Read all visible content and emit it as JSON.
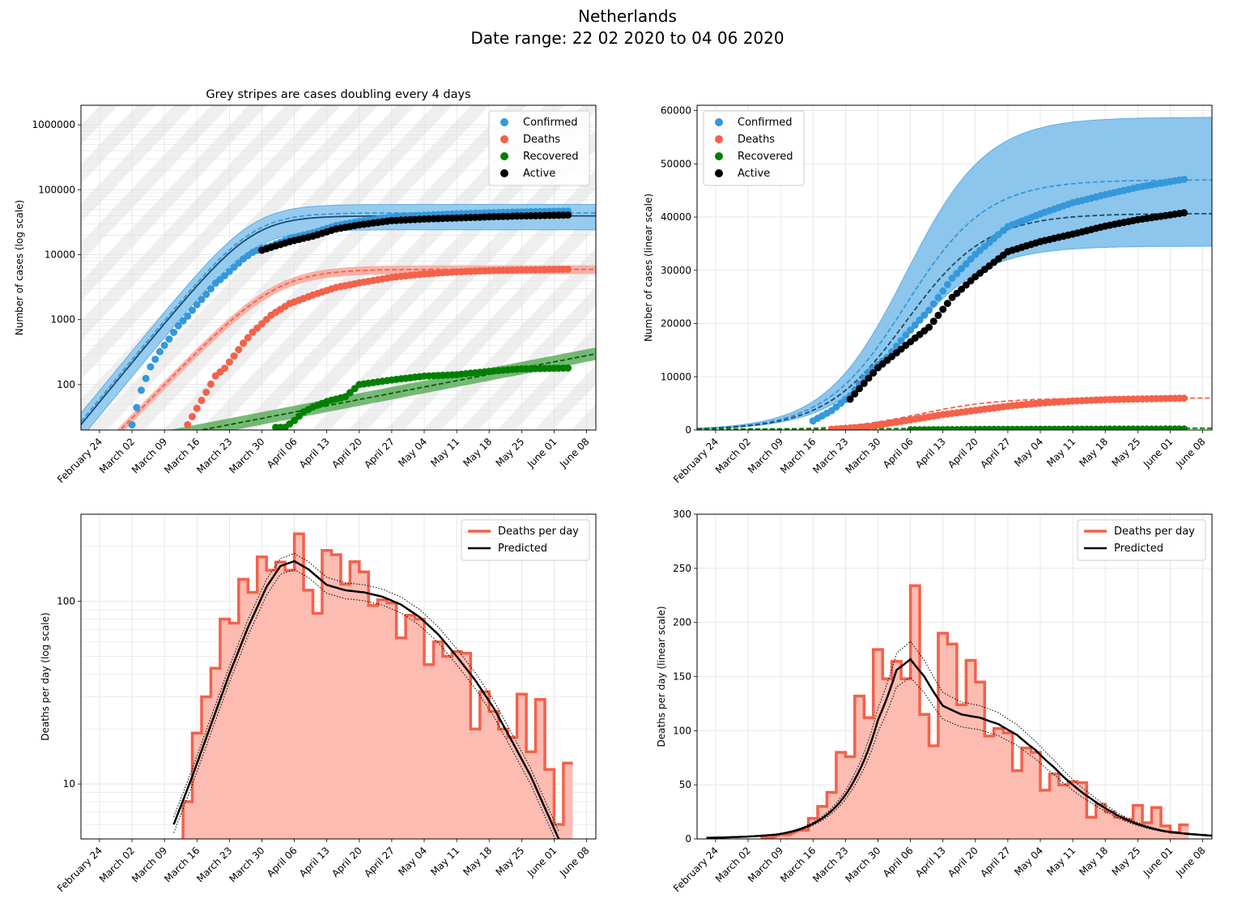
{
  "figure": {
    "title_line1": "Netherlands",
    "title_line2": "Date range: 22 02 2020 to 04 06 2020"
  },
  "date_ticks": [
    "February 24",
    "March 02",
    "March 09",
    "March 16",
    "March 23",
    "March 30",
    "April 06",
    "April 13",
    "April 20",
    "April 27",
    "May 04",
    "May 11",
    "May 18",
    "May 25",
    "June 01",
    "June 08"
  ],
  "colors": {
    "confirmed": "#3498db",
    "deaths": "#f4614a",
    "recovered": "#008000",
    "active": "#000000",
    "active_line": "#1a4a6e",
    "confirmed_band": "#8cc6ec",
    "deaths_fill": "#fcbcb1",
    "stripe": "#efefef",
    "grid": "#e2e2e2"
  },
  "chart_data": [
    {
      "type": "scatter",
      "title": "Grey stripes are cases doubling every 4 days",
      "xlabel": "",
      "ylabel": "Number of cases (log scale)",
      "yscale": "log",
      "ylim": [
        20,
        2000000
      ],
      "xlim": [
        "2020-02-20",
        "2020-06-10"
      ],
      "grid": true,
      "legend": "top-right",
      "yticks": [
        "100",
        "1000",
        "10000",
        "100000",
        "1000000"
      ],
      "legend_entries": [
        "Confirmed",
        "Deaths",
        "Recovered",
        "Active"
      ],
      "series": [
        {
          "name": "Confirmed",
          "x": [
            "2020-03-02",
            "2020-03-04",
            "2020-03-06",
            "2020-03-08",
            "2020-03-10",
            "2020-03-12",
            "2020-03-14",
            "2020-03-16",
            "2020-03-18",
            "2020-03-20",
            "2020-03-22",
            "2020-03-24",
            "2020-03-26",
            "2020-03-28",
            "2020-03-30",
            "2020-04-01",
            "2020-04-05",
            "2020-04-10",
            "2020-04-15",
            "2020-04-20",
            "2020-04-27",
            "2020-05-04",
            "2020-05-11",
            "2020-05-18",
            "2020-05-25",
            "2020-06-04"
          ],
          "y": [
            24,
            82,
            188,
            321,
            503,
            804,
            1135,
            1705,
            2460,
            3631,
            4749,
            6412,
            8603,
            10866,
            12595,
            13614,
            17851,
            21762,
            28153,
            32655,
            38245,
            40571,
            42627,
            44141,
            45578,
            46942
          ]
        },
        {
          "name": "Deaths",
          "x": [
            "2020-03-14",
            "2020-03-16",
            "2020-03-18",
            "2020-03-20",
            "2020-03-22",
            "2020-03-24",
            "2020-03-26",
            "2020-03-28",
            "2020-03-30",
            "2020-04-01",
            "2020-04-05",
            "2020-04-10",
            "2020-04-15",
            "2020-04-20",
            "2020-04-27",
            "2020-05-04",
            "2020-05-11",
            "2020-05-18",
            "2020-05-25",
            "2020-06-04"
          ],
          "y": [
            24,
            43,
            76,
            136,
            179,
            276,
            434,
            639,
            864,
            1173,
            1766,
            2396,
            3134,
            3684,
            4475,
            5056,
            5440,
            5694,
            5830,
            5977
          ]
        },
        {
          "name": "Recovered",
          "x": [
            "2020-04-02",
            "2020-04-04",
            "2020-04-06",
            "2020-04-08",
            "2020-04-10",
            "2020-04-13",
            "2020-04-17",
            "2020-04-20",
            "2020-04-27",
            "2020-05-04",
            "2020-05-11",
            "2020-05-18",
            "2020-05-25",
            "2020-06-04"
          ],
          "y": [
            22,
            22,
            28,
            38,
            45,
            55,
            65,
            100,
            118,
            135,
            142,
            160,
            175,
            180
          ]
        },
        {
          "name": "Active",
          "x": [
            "2020-03-30",
            "2020-04-05",
            "2020-04-10",
            "2020-04-15",
            "2020-04-20",
            "2020-04-27",
            "2020-05-04",
            "2020-05-11",
            "2020-05-18",
            "2020-05-25",
            "2020-06-04"
          ],
          "y": [
            11700,
            15900,
            19300,
            24900,
            28800,
            33500,
            35400,
            36800,
            38300,
            39500,
            40800
          ]
        }
      ]
    },
    {
      "type": "scatter",
      "xlabel": "",
      "ylabel": "Number of cases (linear scale)",
      "yscale": "linear",
      "ylim": [
        0,
        61000
      ],
      "xlim": [
        "2020-02-20",
        "2020-06-10"
      ],
      "grid": true,
      "legend": "top-left",
      "yticks": [
        "0",
        "10000",
        "20000",
        "30000",
        "40000",
        "50000",
        "60000"
      ],
      "legend_entries": [
        "Confirmed",
        "Deaths",
        "Recovered",
        "Active"
      ],
      "series": [
        {
          "name": "Confirmed",
          "x": [
            "2020-03-16",
            "2020-03-20",
            "2020-03-24",
            "2020-03-28",
            "2020-04-01",
            "2020-04-05",
            "2020-04-10",
            "2020-04-15",
            "2020-04-20",
            "2020-04-27",
            "2020-05-04",
            "2020-05-11",
            "2020-05-18",
            "2020-05-25",
            "2020-06-04"
          ],
          "y": [
            1705,
            3631,
            6412,
            10866,
            13614,
            17851,
            22500,
            28500,
            33000,
            38200,
            40600,
            42700,
            44200,
            45600,
            47100
          ]
        },
        {
          "name": "Deaths",
          "x": [
            "2020-03-20",
            "2020-03-28",
            "2020-04-05",
            "2020-04-13",
            "2020-04-20",
            "2020-04-27",
            "2020-05-04",
            "2020-05-11",
            "2020-05-18",
            "2020-05-25",
            "2020-06-04"
          ],
          "y": [
            136,
            639,
            1766,
            2900,
            3684,
            4475,
            5056,
            5440,
            5694,
            5830,
            5977
          ]
        },
        {
          "name": "Recovered",
          "x": [
            "2020-04-06",
            "2020-04-20",
            "2020-05-04",
            "2020-05-18",
            "2020-06-04"
          ],
          "y": [
            28,
            100,
            135,
            160,
            180
          ]
        },
        {
          "name": "Active",
          "x": [
            "2020-03-24",
            "2020-03-30",
            "2020-04-05",
            "2020-04-10",
            "2020-04-15",
            "2020-04-20",
            "2020-04-27",
            "2020-05-04",
            "2020-05-11",
            "2020-05-18",
            "2020-05-25",
            "2020-06-04"
          ],
          "y": [
            5800,
            11700,
            15900,
            19300,
            24900,
            28800,
            33500,
            35400,
            36800,
            38300,
            39500,
            40800
          ]
        }
      ]
    },
    {
      "type": "line",
      "xlabel": "",
      "ylabel": "Deaths per day (log scale)",
      "yscale": "log",
      "ylim": [
        5,
        300
      ],
      "xlim": [
        "2020-02-20",
        "2020-06-10"
      ],
      "grid": true,
      "legend": "top-right",
      "yticks": [
        "10",
        "100"
      ],
      "legend_entries": [
        "Deaths per day",
        "Predicted"
      ],
      "series": [
        {
          "name": "Deaths per day",
          "x": [
            "2020-03-14",
            "2020-03-16",
            "2020-03-18",
            "2020-03-20",
            "2020-03-22",
            "2020-03-24",
            "2020-03-26",
            "2020-03-28",
            "2020-03-30",
            "2020-04-01",
            "2020-04-03",
            "2020-04-05",
            "2020-04-07",
            "2020-04-09",
            "2020-04-11",
            "2020-04-13",
            "2020-04-15",
            "2020-04-17",
            "2020-04-19",
            "2020-04-21",
            "2020-04-23",
            "2020-04-25",
            "2020-04-27",
            "2020-04-29",
            "2020-05-01",
            "2020-05-03",
            "2020-05-05",
            "2020-05-07",
            "2020-05-09",
            "2020-05-11",
            "2020-05-13",
            "2020-05-15",
            "2020-05-17",
            "2020-05-19",
            "2020-05-21",
            "2020-05-23",
            "2020-05-25",
            "2020-05-27",
            "2020-05-29",
            "2020-05-31",
            "2020-06-02",
            "2020-06-04"
          ],
          "y": [
            8,
            19,
            30,
            43,
            80,
            76,
            132,
            112,
            175,
            148,
            164,
            148,
            234,
            115,
            86,
            190,
            180,
            124,
            165,
            145,
            95,
            102,
            98,
            63,
            84,
            80,
            45,
            60,
            50,
            53,
            52,
            20,
            32,
            25,
            20,
            18,
            31,
            15,
            29,
            12,
            6,
            13
          ]
        },
        {
          "name": "Predicted",
          "x": [
            "2020-03-11",
            "2020-03-15",
            "2020-03-19",
            "2020-03-23",
            "2020-03-27",
            "2020-03-31",
            "2020-04-03",
            "2020-04-06",
            "2020-04-09",
            "2020-04-13",
            "2020-04-17",
            "2020-04-21",
            "2020-04-25",
            "2020-04-29",
            "2020-05-03",
            "2020-05-07",
            "2020-05-11",
            "2020-05-15",
            "2020-05-19",
            "2020-05-23",
            "2020-05-27",
            "2020-05-31",
            "2020-06-02"
          ],
          "y": [
            6,
            11,
            21,
            40,
            72,
            120,
            156,
            166,
            150,
            123,
            115,
            112,
            106,
            96,
            82,
            66,
            50,
            37,
            26,
            17,
            11,
            6.5,
            5
          ]
        }
      ]
    },
    {
      "type": "line",
      "xlabel": "",
      "ylabel": "Deaths per day (linear scale)",
      "yscale": "linear",
      "ylim": [
        0,
        300
      ],
      "xlim": [
        "2020-02-20",
        "2020-06-10"
      ],
      "grid": true,
      "legend": "top-right",
      "yticks": [
        "0",
        "50",
        "100",
        "150",
        "200",
        "250",
        "300"
      ],
      "legend_entries": [
        "Deaths per day",
        "Predicted"
      ],
      "series": [
        {
          "name": "Deaths per day",
          "x": [
            "2020-03-06",
            "2020-03-10",
            "2020-03-14",
            "2020-03-16",
            "2020-03-18",
            "2020-03-20",
            "2020-03-22",
            "2020-03-24",
            "2020-03-26",
            "2020-03-28",
            "2020-03-30",
            "2020-04-01",
            "2020-04-03",
            "2020-04-05",
            "2020-04-07",
            "2020-04-09",
            "2020-04-11",
            "2020-04-13",
            "2020-04-15",
            "2020-04-17",
            "2020-04-19",
            "2020-04-21",
            "2020-04-23",
            "2020-04-25",
            "2020-04-27",
            "2020-04-29",
            "2020-05-01",
            "2020-05-03",
            "2020-05-05",
            "2020-05-07",
            "2020-05-09",
            "2020-05-11",
            "2020-05-13",
            "2020-05-15",
            "2020-05-17",
            "2020-05-19",
            "2020-05-21",
            "2020-05-23",
            "2020-05-25",
            "2020-05-27",
            "2020-05-29",
            "2020-05-31",
            "2020-06-02",
            "2020-06-04"
          ],
          "y": [
            1,
            4,
            8,
            19,
            30,
            43,
            80,
            76,
            132,
            112,
            175,
            148,
            164,
            148,
            234,
            115,
            86,
            190,
            180,
            124,
            165,
            145,
            95,
            102,
            98,
            63,
            84,
            80,
            45,
            60,
            50,
            53,
            52,
            20,
            32,
            25,
            20,
            18,
            31,
            15,
            29,
            12,
            6,
            13
          ]
        },
        {
          "name": "Predicted",
          "x": [
            "2020-02-22",
            "2020-03-01",
            "2020-03-08",
            "2020-03-15",
            "2020-03-20",
            "2020-03-25",
            "2020-03-30",
            "2020-04-03",
            "2020-04-06",
            "2020-04-09",
            "2020-04-13",
            "2020-04-17",
            "2020-04-21",
            "2020-04-25",
            "2020-04-29",
            "2020-05-03",
            "2020-05-07",
            "2020-05-11",
            "2020-05-15",
            "2020-05-19",
            "2020-05-23",
            "2020-05-27",
            "2020-05-31",
            "2020-06-04",
            "2020-06-10"
          ],
          "y": [
            1,
            2,
            4,
            12,
            26,
            55,
            110,
            156,
            166,
            150,
            123,
            115,
            112,
            106,
            96,
            82,
            66,
            50,
            37,
            26,
            17,
            11,
            7,
            5,
            3
          ]
        }
      ]
    }
  ]
}
